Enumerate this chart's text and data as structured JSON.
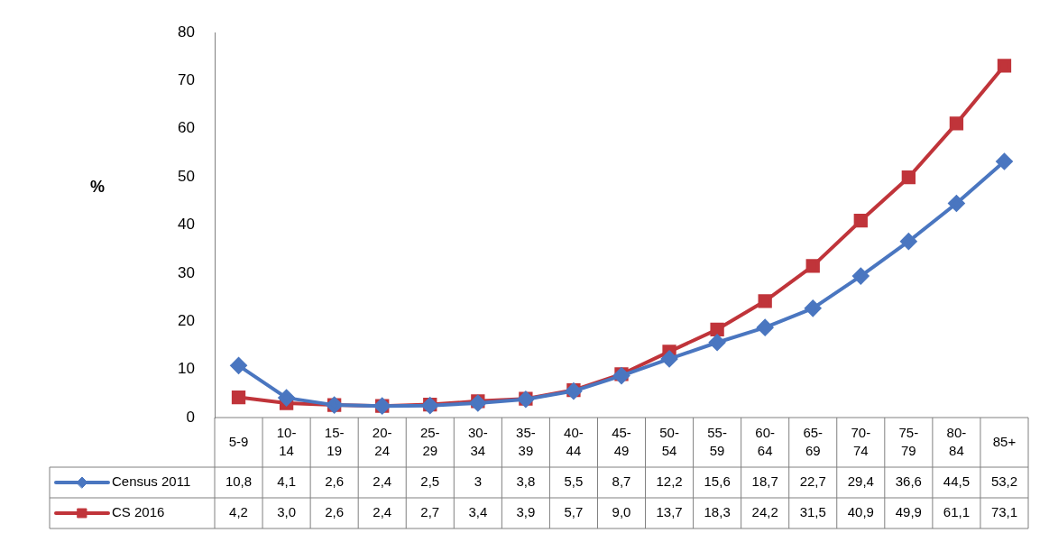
{
  "chart_data": {
    "type": "line",
    "ylabel": "%",
    "categories": [
      "5-9",
      "10-14",
      "15-19",
      "20-24",
      "25-29",
      "30-34",
      "35-39",
      "40-44",
      "45-49",
      "50-54",
      "55-59",
      "60-64",
      "65-69",
      "70-74",
      "75-79",
      "80-84",
      "85+"
    ],
    "series": [
      {
        "name": "Census 2011",
        "color": "#4a76c0",
        "marker": "diamond",
        "values": [
          10.8,
          4.1,
          2.6,
          2.4,
          2.5,
          3,
          3.8,
          5.5,
          8.7,
          12.2,
          15.6,
          18.7,
          22.7,
          29.4,
          36.6,
          44.5,
          53.2
        ],
        "value_labels": [
          "10,8",
          "4,1",
          "2,6",
          "2,4",
          "2,5",
          "3",
          "3,8",
          "5,5",
          "8,7",
          "12,2",
          "15,6",
          "18,7",
          "22,7",
          "29,4",
          "36,6",
          "44,5",
          "53,2"
        ]
      },
      {
        "name": "CS 2016",
        "color": "#c0343a",
        "marker": "square",
        "values": [
          4.2,
          3.0,
          2.6,
          2.4,
          2.7,
          3.4,
          3.9,
          5.7,
          9.0,
          13.7,
          18.3,
          24.2,
          31.5,
          40.9,
          49.9,
          61.1,
          73.1
        ],
        "value_labels": [
          "4,2",
          "3,0",
          "2,6",
          "2,4",
          "2,7",
          "3,4",
          "3,9",
          "5,7",
          "9,0",
          "13,7",
          "18,3",
          "24,2",
          "31,5",
          "40,9",
          "49,9",
          "61,1",
          "73,1"
        ]
      }
    ],
    "ylim": [
      0,
      80
    ],
    "yticks": [
      0,
      10,
      20,
      30,
      40,
      50,
      60,
      70,
      80
    ],
    "grid": false,
    "legend": "bottom",
    "line_style": "solid"
  }
}
